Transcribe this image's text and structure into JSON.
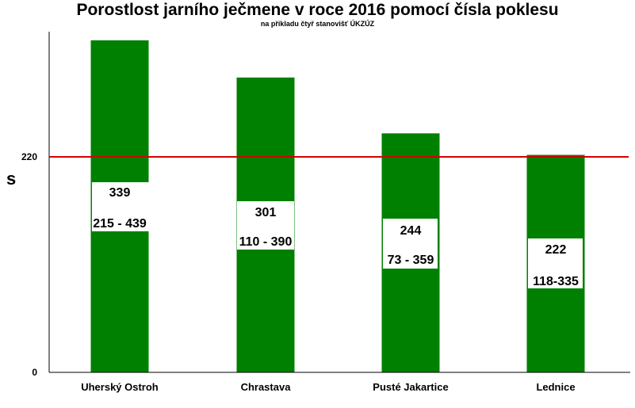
{
  "chart_data": {
    "type": "bar",
    "title": "Porostlost jarního ječmene v roce 2016 pomocí čísla poklesu",
    "subtitle": "na příkladu čtyř stanovišť ÚKZÚZ",
    "ylabel": "s",
    "ylim": [
      0,
      350
    ],
    "yticks": [
      0,
      220
    ],
    "reference_line": {
      "value": 220,
      "color": "#d40000"
    },
    "bar_color": "#008000",
    "categories": [
      "Uherský Ostroh",
      "Chrastava",
      "Pusté Jakartice",
      "Lednice"
    ],
    "series": [
      {
        "values": [
          339,
          301,
          244,
          222
        ],
        "ranges": [
          "215 - 439",
          "110 - 390",
          "73 - 359",
          "118-335"
        ]
      }
    ]
  }
}
